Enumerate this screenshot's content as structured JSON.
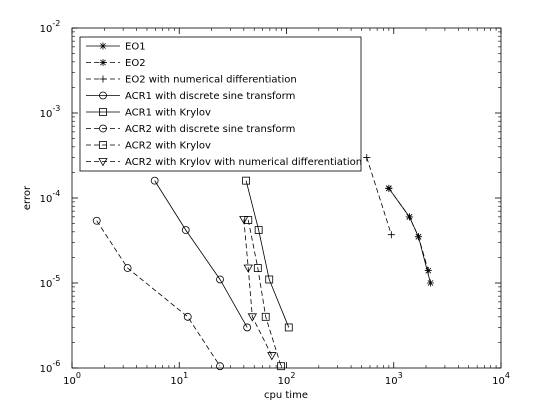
{
  "chart_data": {
    "type": "line",
    "xlabel": "cpu time",
    "ylabel": "error",
    "xscale": "log",
    "yscale": "log",
    "xlim": [
      1,
      10000
    ],
    "ylim": [
      1e-06,
      0.01
    ],
    "xticks": [
      {
        "value": 1,
        "label": "10^0"
      },
      {
        "value": 10,
        "label": "10^1"
      },
      {
        "value": 100,
        "label": "10^2"
      },
      {
        "value": 1000,
        "label": "10^3"
      },
      {
        "value": 10000,
        "label": "10^4"
      }
    ],
    "yticks": [
      {
        "value": 1e-06,
        "label": "10^-6"
      },
      {
        "value": 1e-05,
        "label": "10^-5"
      },
      {
        "value": 0.0001,
        "label": "10^-4"
      },
      {
        "value": 0.001,
        "label": "10^-3"
      },
      {
        "value": 0.01,
        "label": "10^-2"
      }
    ],
    "legend": "upper left",
    "series": [
      {
        "name": "EO1",
        "color": "#000000",
        "linestyle": "solid",
        "marker": "star",
        "x": [
          900,
          1400,
          1700,
          2200
        ],
        "values": [
          0.00013,
          6e-05,
          3.5e-05,
          1e-05
        ]
      },
      {
        "name": "EO2",
        "color": "#000000",
        "linestyle": "dashed",
        "marker": "asterisk",
        "x": [
          900,
          1400,
          1700,
          2100
        ],
        "values": [
          0.00013,
          6e-05,
          3.5e-05,
          1.4e-05
        ]
      },
      {
        "name": "EO2 with numerical differentiation",
        "color": "#000000",
        "linestyle": "dashed",
        "marker": "plus",
        "x": [
          560,
          950
        ],
        "values": [
          0.0003,
          3.7e-05
        ]
      },
      {
        "name": "ACR1 with discrete sine transform",
        "color": "#000000",
        "linestyle": "solid",
        "marker": "circle",
        "x": [
          5.9,
          11.5,
          24,
          43
        ],
        "values": [
          0.00016,
          4.2e-05,
          1.1e-05,
          3e-06
        ]
      },
      {
        "name": "ACR1 with Krylov",
        "color": "#000000",
        "linestyle": "solid",
        "marker": "square",
        "x": [
          42,
          55,
          69,
          105
        ],
        "values": [
          0.00016,
          4.2e-05,
          1.1e-05,
          3e-06
        ]
      },
      {
        "name": "ACR2 with discrete sine transform",
        "color": "#000000",
        "linestyle": "dashed",
        "marker": "circle",
        "x": [
          1.7,
          3.3,
          12,
          24
        ],
        "values": [
          5.4e-05,
          1.5e-05,
          4e-06,
          1.05e-06
        ]
      },
      {
        "name": "ACR2 with Krylov",
        "color": "#000000",
        "linestyle": "dashed",
        "marker": "square",
        "x": [
          44,
          54,
          64,
          89
        ],
        "values": [
          5.5e-05,
          1.5e-05,
          4e-06,
          1.05e-06
        ]
      },
      {
        "name": "ACR2 with Krylov with numerical differentiation",
        "color": "#000000",
        "linestyle": "dashed",
        "marker": "triangle-down",
        "x": [
          40,
          44,
          48,
          73
        ],
        "values": [
          5.6e-05,
          1.5e-05,
          4e-06,
          1.4e-06
        ]
      }
    ]
  }
}
